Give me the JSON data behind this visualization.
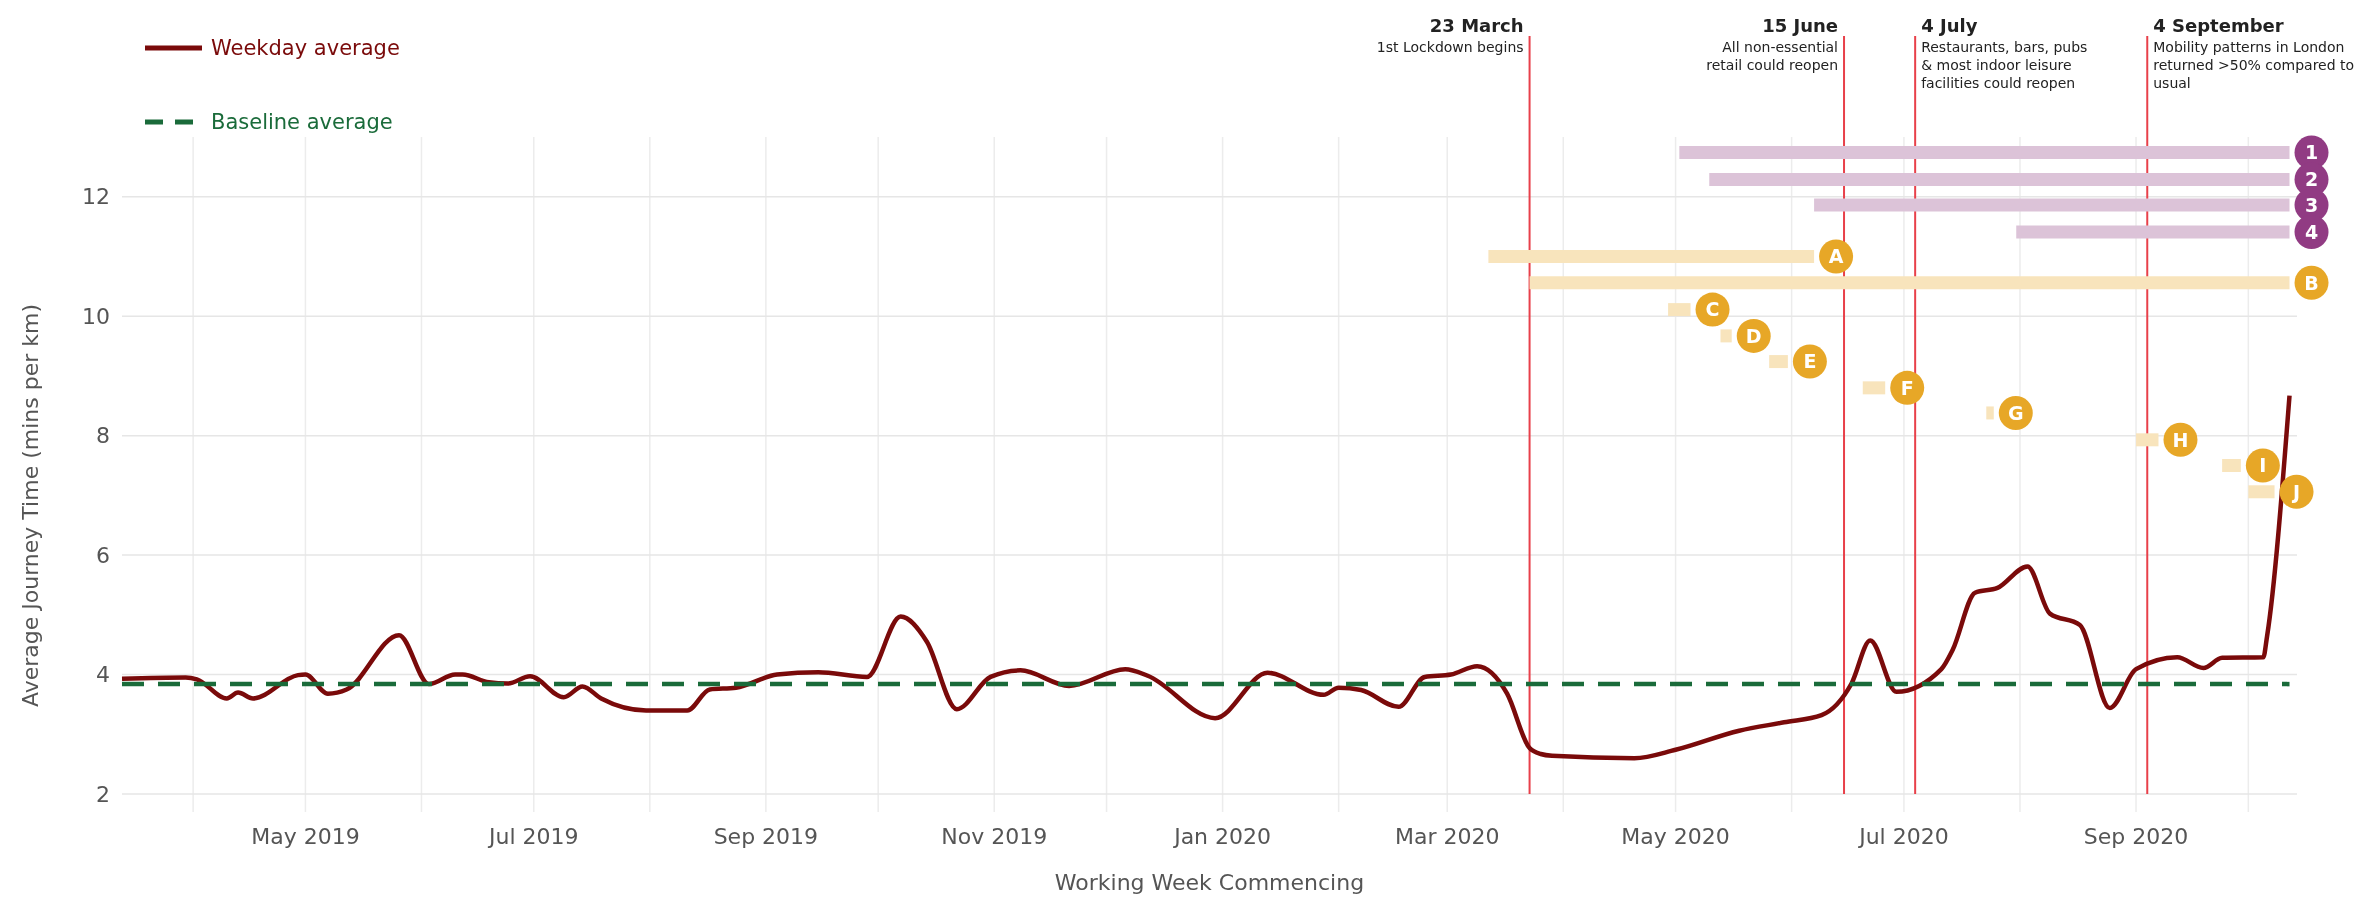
{
  "chart_data": {
    "type": "line",
    "xlabel": "Working Week Commencing",
    "ylabel": "Average Journey Time (mins per km)",
    "xlim": [
      "2019-03-13",
      "2020-10-14"
    ],
    "xticks": [
      {
        "value": "2019-04-01",
        "label": null
      },
      {
        "value": "2019-05-01",
        "label": "May 2019"
      },
      {
        "value": "2019-06-01",
        "label": null
      },
      {
        "value": "2019-07-01",
        "label": "Jul 2019"
      },
      {
        "value": "2019-08-01",
        "label": null
      },
      {
        "value": "2019-09-01",
        "label": "Sep 2019"
      },
      {
        "value": "2019-10-01",
        "label": null
      },
      {
        "value": "2019-11-01",
        "label": "Nov 2019"
      },
      {
        "value": "2019-12-01",
        "label": null
      },
      {
        "value": "2020-01-01",
        "label": "Jan 2020"
      },
      {
        "value": "2020-02-01",
        "label": null
      },
      {
        "value": "2020-03-01",
        "label": "Mar 2020"
      },
      {
        "value": "2020-04-01",
        "label": null
      },
      {
        "value": "2020-05-01",
        "label": "May 2020"
      },
      {
        "value": "2020-06-01",
        "label": null
      },
      {
        "value": "2020-07-01",
        "label": "Jul 2020"
      },
      {
        "value": "2020-08-01",
        "label": null
      },
      {
        "value": "2020-09-01",
        "label": "Sep 2020"
      },
      {
        "value": "2020-10-01",
        "label": null
      }
    ],
    "ylim": [
      2,
      13
    ],
    "yticks": [
      2,
      4,
      6,
      8,
      10,
      12
    ],
    "grid": true,
    "legend": "top left",
    "series": [
      {
        "name": "Weekday average",
        "color": "#7a0a0a",
        "line_style": "solid",
        "x": [
          "2019-03-13",
          "2019-03-30",
          "2019-04-02",
          "2019-04-10",
          "2019-04-13",
          "2019-04-17",
          "2019-04-29",
          "2019-05-01",
          "2019-05-07",
          "2019-05-12",
          "2019-05-26",
          "2019-06-03",
          "2019-06-10",
          "2019-06-12",
          "2019-06-19",
          "2019-06-24",
          "2019-06-30",
          "2019-07-09",
          "2019-07-14",
          "2019-07-19",
          "2019-07-31",
          "2019-08-11",
          "2019-08-17",
          "2019-08-24",
          "2019-09-04",
          "2019-09-15",
          "2019-09-28",
          "2019-10-07",
          "2019-10-14",
          "2019-10-22",
          "2019-10-31",
          "2019-11-08",
          "2019-11-21",
          "2019-12-06",
          "2019-12-12",
          "2019-12-30",
          "2020-01-13",
          "2020-01-28",
          "2020-02-01",
          "2020-02-07",
          "2020-02-17",
          "2020-02-24",
          "2020-03-02",
          "2020-03-09",
          "2020-03-17",
          "2020-03-23",
          "2020-03-26",
          "2020-03-29",
          "2020-04-20",
          "2020-05-01",
          "2020-05-18",
          "2020-05-30",
          "2020-06-09",
          "2020-06-17",
          "2020-06-22",
          "2020-06-29",
          "2020-07-11",
          "2020-07-14",
          "2020-07-20",
          "2020-07-26",
          "2020-08-03",
          "2020-08-09",
          "2020-08-17",
          "2020-08-25",
          "2020-09-01",
          "2020-09-12",
          "2020-09-19",
          "2020-09-24",
          "2020-10-05",
          "2020-10-06",
          "2020-10-12"
        ],
        "values": [
          3.93,
          3.95,
          3.92,
          3.6,
          3.7,
          3.6,
          3.99,
          4.0,
          3.68,
          3.75,
          4.66,
          3.84,
          4.0,
          4.0,
          3.87,
          3.85,
          3.97,
          3.62,
          3.8,
          3.6,
          3.4,
          3.4,
          3.75,
          3.78,
          4.0,
          4.04,
          3.96,
          4.97,
          4.55,
          3.42,
          3.96,
          4.07,
          3.81,
          4.09,
          3.98,
          3.27,
          4.03,
          3.66,
          3.78,
          3.74,
          3.46,
          3.96,
          4.0,
          4.14,
          3.68,
          2.77,
          2.67,
          2.64,
          2.6,
          2.74,
          3.06,
          3.2,
          3.32,
          3.85,
          4.57,
          3.71,
          4.09,
          4.41,
          5.37,
          5.45,
          5.81,
          5.02,
          4.83,
          3.44,
          4.09,
          4.29,
          4.11,
          4.28,
          4.29,
          4.64,
          8.67
        ]
      },
      {
        "name": "Baseline average",
        "color": "#1a6b3a",
        "line_style": "dashed",
        "x": [
          "2019-03-13",
          "2020-10-12"
        ],
        "values": [
          3.84,
          3.84
        ]
      },
      {
        "name": "1",
        "color": "#dcc3d8",
        "x": [
          "2020-05-02",
          "2020-10-12"
        ],
        "values": [
          12.74,
          12.74
        ]
      },
      {
        "name": "2",
        "color": "#dcc3d8",
        "x": [
          "2020-05-10",
          "2020-10-12"
        ],
        "values": [
          12.29,
          12.29
        ]
      },
      {
        "name": "3",
        "color": "#dcc3d8",
        "x": [
          "2020-06-07",
          "2020-10-12"
        ],
        "values": [
          11.86,
          11.86
        ]
      },
      {
        "name": "4",
        "color": "#dcc3d8",
        "x": [
          "2020-07-31",
          "2020-10-12"
        ],
        "values": [
          11.41,
          11.41
        ]
      },
      {
        "name": "A",
        "color": "#f8e4bc",
        "x": [
          "2020-03-12",
          "2020-06-07"
        ],
        "values": [
          11.0,
          11.0
        ]
      },
      {
        "name": "B",
        "color": "#f8e4bc",
        "x": [
          "2020-03-23",
          "2020-10-12"
        ],
        "values": [
          10.56,
          10.56
        ]
      },
      {
        "name": "C",
        "color": "#f8e4bc",
        "x": [
          "2020-04-29",
          "2020-05-05"
        ],
        "values": [
          10.11,
          10.11
        ]
      },
      {
        "name": "D",
        "color": "#f8e4bc",
        "x": [
          "2020-05-13",
          "2020-05-16"
        ],
        "values": [
          9.67,
          9.67
        ]
      },
      {
        "name": "E",
        "color": "#f8e4bc",
        "x": [
          "2020-05-26",
          "2020-05-31"
        ],
        "values": [
          9.24,
          9.24
        ]
      },
      {
        "name": "F",
        "color": "#f8e4bc",
        "x": [
          "2020-06-20",
          "2020-06-26"
        ],
        "values": [
          8.8,
          8.8
        ]
      },
      {
        "name": "G",
        "color": "#f8e4bc",
        "x": [
          "2020-07-23",
          "2020-07-25"
        ],
        "values": [
          8.38,
          8.38
        ]
      },
      {
        "name": "H",
        "color": "#f8e4bc",
        "x": [
          "2020-09-01",
          "2020-09-07"
        ],
        "values": [
          7.93,
          7.93
        ]
      },
      {
        "name": "I",
        "color": "#f8e4bc",
        "x": [
          "2020-09-24",
          "2020-09-29"
        ],
        "values": [
          7.5,
          7.5
        ]
      },
      {
        "name": "J",
        "color": "#f8e4bc",
        "x": [
          "2020-10-01",
          "2020-10-08"
        ],
        "values": [
          7.06,
          7.06
        ]
      }
    ],
    "ref_lines": [
      {
        "axis": "x",
        "value": "2020-03-23",
        "label": "23 March\n1st Lockdown begins",
        "color": "#e8404a"
      },
      {
        "axis": "x",
        "value": "2020-06-15",
        "label": "15 June\nAll non-essential\nretail could reopen",
        "color": "#e8404a"
      },
      {
        "axis": "x",
        "value": "2020-07-04",
        "label": "4 July\nRestaurants, bars, pubs\n& most indoor leisure\nfacilities could reopen",
        "color": "#e8404a"
      },
      {
        "axis": "x",
        "value": "2020-09-04",
        "label": "4 September\nMobility patterns in London\nreturned >50% compared to\nusual",
        "color": "#e8404a"
      }
    ]
  }
}
